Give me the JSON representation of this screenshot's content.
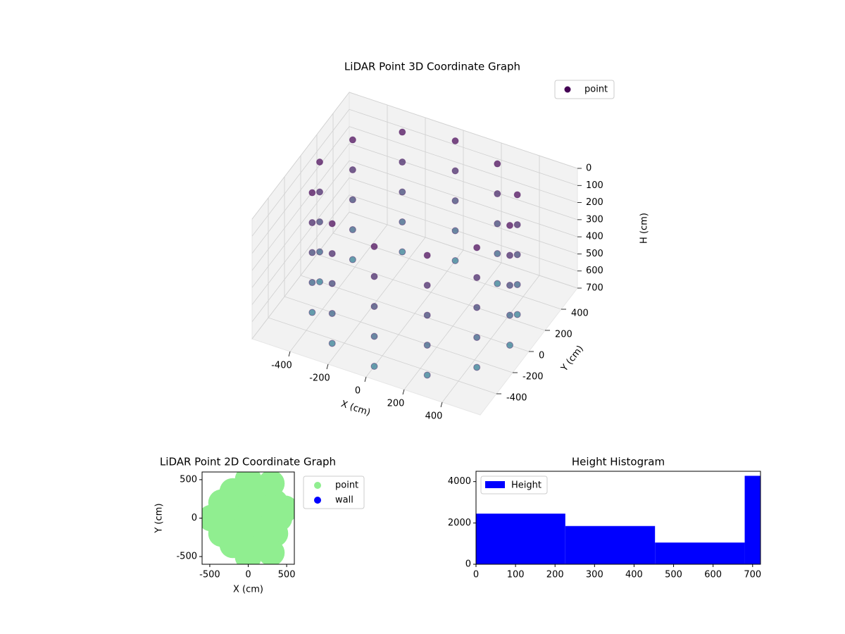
{
  "chart_data": [
    {
      "type": "scatter3d",
      "title": "LiDAR Point 3D Coordinate Graph",
      "xlabel": "X (cm)",
      "ylabel": "Y (cm)",
      "zlabel": "H (cm)",
      "xlim": [
        -600,
        600
      ],
      "ylim": [
        -600,
        600
      ],
      "zlim": [
        0,
        700
      ],
      "z_inverted": true,
      "xticks": [
        -400,
        -200,
        0,
        200,
        400
      ],
      "yticks": [
        -400,
        -200,
        0,
        200,
        400
      ],
      "zticks": [
        0,
        100,
        200,
        300,
        400,
        500,
        600,
        700
      ],
      "colormap": "viridis",
      "legend": "upper right",
      "series": [
        {
          "name": "point",
          "color": "#440154",
          "x": [
            500,
            433,
            250,
            0,
            -250,
            -433,
            -500,
            -433,
            -250,
            0,
            250,
            433,
            500,
            433,
            250,
            0,
            -250,
            -433,
            -500,
            -433,
            -250,
            0,
            250,
            433,
            500,
            433,
            250,
            0,
            -250,
            -433,
            -500,
            -433,
            -250,
            0,
            250,
            433,
            500,
            433,
            250,
            0,
            -250,
            -433,
            -500,
            -433,
            -250,
            0,
            250,
            433,
            500,
            433,
            250,
            0,
            -250,
            -433,
            -500,
            -433,
            -250,
            0,
            250,
            433
          ],
          "y": [
            0,
            250,
            433,
            500,
            433,
            250,
            0,
            -250,
            -433,
            -500,
            -433,
            -250,
            0,
            250,
            433,
            500,
            433,
            250,
            0,
            -250,
            -433,
            -500,
            -433,
            -250,
            0,
            250,
            433,
            500,
            433,
            250,
            0,
            -250,
            -433,
            -500,
            -433,
            -250,
            0,
            250,
            433,
            500,
            433,
            250,
            0,
            -250,
            -433,
            -500,
            -433,
            -250,
            0,
            250,
            433,
            500,
            433,
            250,
            0,
            -250,
            -433,
            -500,
            -433,
            -250
          ],
          "z": [
            0,
            0,
            0,
            0,
            0,
            0,
            0,
            0,
            0,
            0,
            0,
            0,
            175,
            175,
            175,
            175,
            175,
            175,
            175,
            175,
            175,
            175,
            175,
            175,
            350,
            350,
            350,
            350,
            350,
            350,
            350,
            350,
            350,
            350,
            350,
            350,
            525,
            525,
            525,
            525,
            525,
            525,
            525,
            525,
            525,
            525,
            525,
            525,
            700,
            700,
            700,
            700,
            700,
            700,
            700,
            700,
            700,
            700,
            700,
            700
          ]
        }
      ]
    },
    {
      "type": "scatter",
      "title": "LiDAR Point 2D Coordinate Graph",
      "xlabel": "X (cm)",
      "ylabel": "Y (cm)",
      "xlim": [
        -600,
        600
      ],
      "ylim": [
        -600,
        600
      ],
      "xticks": [
        -500,
        0,
        500
      ],
      "yticks": [
        -500,
        0,
        500
      ],
      "legend": "outside right",
      "series": [
        {
          "name": "point",
          "color": "#90ee90",
          "x": [
            0,
            200,
            100,
            -100,
            -200,
            -100,
            100,
            400,
            346,
            200,
            0,
            -200,
            -346,
            -400,
            -346,
            -200,
            0,
            200,
            346,
            480,
            -480,
            0,
            0,
            300,
            300
          ],
          "y": [
            0,
            0,
            173,
            173,
            0,
            -173,
            -173,
            0,
            200,
            346,
            400,
            346,
            200,
            0,
            -200,
            -346,
            -400,
            -346,
            -200,
            120,
            0,
            500,
            -500,
            450,
            -450
          ]
        },
        {
          "name": "wall",
          "color": "#0000ff",
          "x": [],
          "y": []
        }
      ]
    },
    {
      "type": "histogram",
      "title": "Height Histogram",
      "legend": "upper left",
      "bins": [
        0,
        226,
        453,
        680,
        720
      ],
      "series": [
        {
          "name": "Height",
          "color": "#0000ff",
          "values": [
            2450,
            1850,
            1050,
            4280
          ]
        }
      ],
      "xlim": [
        0,
        720
      ],
      "ylim": [
        0,
        4500
      ],
      "xticks": [
        0,
        100,
        200,
        300,
        400,
        500,
        600,
        700
      ],
      "yticks": [
        0,
        2000,
        4000
      ]
    }
  ]
}
